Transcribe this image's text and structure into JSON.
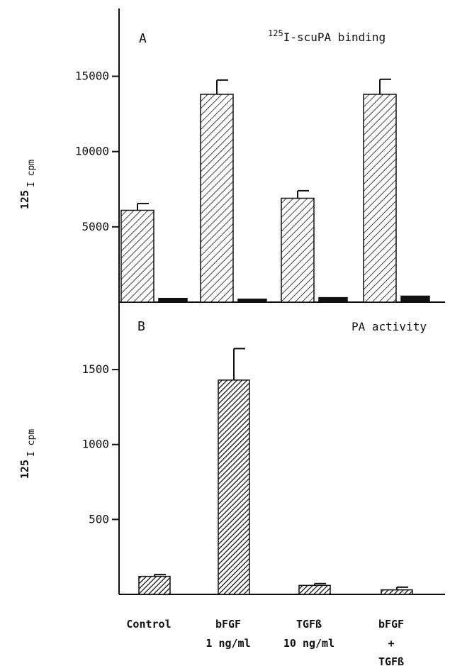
{
  "colors": {
    "ink": "#111111",
    "background": "#ffffff"
  },
  "categories": [
    [
      "Control"
    ],
    [
      "bFGF",
      "1 ng/ml"
    ],
    [
      "TGFß",
      "10 ng/ml"
    ],
    [
      "bFGF",
      "+",
      "TGFß"
    ]
  ],
  "chart_data": [
    {
      "type": "bar",
      "panel_label": "A",
      "title_sup": "125",
      "title_main": "I-scuPA binding",
      "ylabel_sup": "125",
      "ylabel_main": "I cpm",
      "ylim": [
        0,
        19500
      ],
      "yticks": [
        5000,
        10000,
        15000
      ],
      "series": [
        {
          "style": "hatched",
          "values": [
            6100,
            13800,
            6900,
            13800
          ],
          "errors": [
            450,
            950,
            500,
            1000
          ]
        },
        {
          "style": "solid",
          "values": [
            250,
            200,
            300,
            400
          ],
          "errors": [
            0,
            0,
            0,
            0
          ]
        }
      ]
    },
    {
      "type": "bar",
      "panel_label": "B",
      "title_main": "PA activity",
      "ylabel_sup": "125",
      "ylabel_main": "I cpm",
      "ylim": [
        0,
        1950
      ],
      "yticks": [
        500,
        1000,
        1500
      ],
      "series": [
        {
          "style": "dense-hatched",
          "values": [
            120,
            1430,
            60,
            30
          ],
          "errors": [
            12,
            210,
            12,
            18
          ]
        }
      ]
    }
  ]
}
